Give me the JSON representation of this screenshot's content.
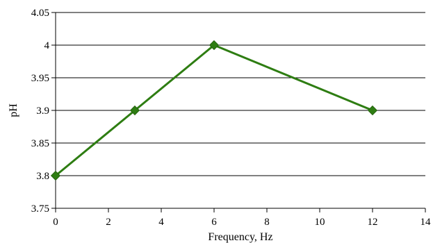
{
  "chart_data": {
    "type": "line",
    "title": "",
    "xlabel": "Frequency, Hz",
    "ylabel": "pH",
    "xlim": [
      0,
      14
    ],
    "ylim": [
      3.75,
      4.05
    ],
    "x_ticks": [
      "0",
      "2",
      "4",
      "6",
      "8",
      "10",
      "12",
      "14"
    ],
    "y_ticks": [
      "3.75",
      "3.8",
      "3.85",
      "3.9",
      "3.95",
      "4",
      "4.05"
    ],
    "grid": "horizontal",
    "legend": "none",
    "series": [
      {
        "color": "#2e7d12",
        "marker": "diamond",
        "x": [
          0,
          3,
          6,
          12
        ],
        "y": [
          3.8,
          3.9,
          4.0,
          3.9
        ]
      }
    ]
  }
}
